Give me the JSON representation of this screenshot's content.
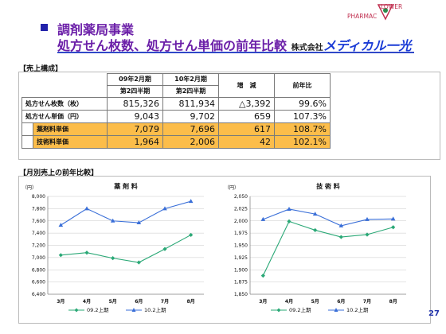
{
  "header": {
    "title_line1": "調剤薬局事業",
    "title_line2": "処方せん枚数、処方せん単価の前年比較",
    "corp_prefix": "株式会社",
    "corp_brand": "メディカル一光",
    "logo_left": "PHARMAC",
    "logo_right": "LOWER"
  },
  "sales_section": {
    "heading": "【売上構成】",
    "columns": [
      {
        "line1": "09年2月期",
        "line2": "第2四半期"
      },
      {
        "line1": "10年2月期",
        "line2": "第2四半期"
      },
      {
        "line1": "増　減",
        "line2": ""
      },
      {
        "line1": "前年比",
        "line2": ""
      }
    ],
    "rows": [
      {
        "label": "処方せん枚数（枚）",
        "values": [
          "815,326",
          "811,934",
          "△3,392",
          "99.6%"
        ],
        "sub": false
      },
      {
        "label": "処方せん単価（円）",
        "values": [
          "9,043",
          "9,702",
          "659",
          "107.3%"
        ],
        "sub": false
      },
      {
        "label": "薬剤料単価",
        "values": [
          "7,079",
          "7,696",
          "617",
          "108.7%"
        ],
        "sub": true
      },
      {
        "label": "技術料単価",
        "values": [
          "1,964",
          "2,006",
          "42",
          "102.1%"
        ],
        "sub": true
      }
    ]
  },
  "monthly_section": {
    "heading": "【月別売上の前年比較】"
  },
  "page_number": "27",
  "chart_data": [
    {
      "type": "line",
      "title": "薬 剤 料",
      "ylabel": "（円）",
      "categories": [
        "3月",
        "4月",
        "5月",
        "6月",
        "7月",
        "8月"
      ],
      "ylim": [
        6400,
        8000
      ],
      "yticks": [
        "6,400",
        "6,600",
        "6,800",
        "7,000",
        "7,200",
        "7,400",
        "7,600",
        "7,800",
        "8,000"
      ],
      "series": [
        {
          "name": "09.2上期",
          "values": [
            7040,
            7080,
            6990,
            6920,
            7140,
            7370
          ],
          "color": "#2aa876",
          "marker": "diamond"
        },
        {
          "name": "10.2上期",
          "values": [
            7530,
            7800,
            7600,
            7570,
            7800,
            7920
          ],
          "color": "#3a6fd8",
          "marker": "triangle"
        }
      ],
      "legend": "bottom"
    },
    {
      "type": "line",
      "title": "技 術 料",
      "ylabel": "（円）",
      "categories": [
        "3月",
        "4月",
        "5月",
        "6月",
        "7月",
        "8月"
      ],
      "ylim": [
        1850,
        2050
      ],
      "yticks": [
        "1,850",
        "1,875",
        "1,900",
        "1,925",
        "1,950",
        "1,975",
        "2,000",
        "2,025",
        "2,050"
      ],
      "series": [
        {
          "name": "09.2上期",
          "values": [
            1888,
            1999,
            1981,
            1967,
            1972,
            1987
          ],
          "color": "#2aa876",
          "marker": "diamond"
        },
        {
          "name": "10.2上期",
          "values": [
            2003,
            2024,
            2014,
            1990,
            2003,
            2004
          ],
          "color": "#3a6fd8",
          "marker": "triangle"
        }
      ],
      "legend": "bottom"
    }
  ]
}
